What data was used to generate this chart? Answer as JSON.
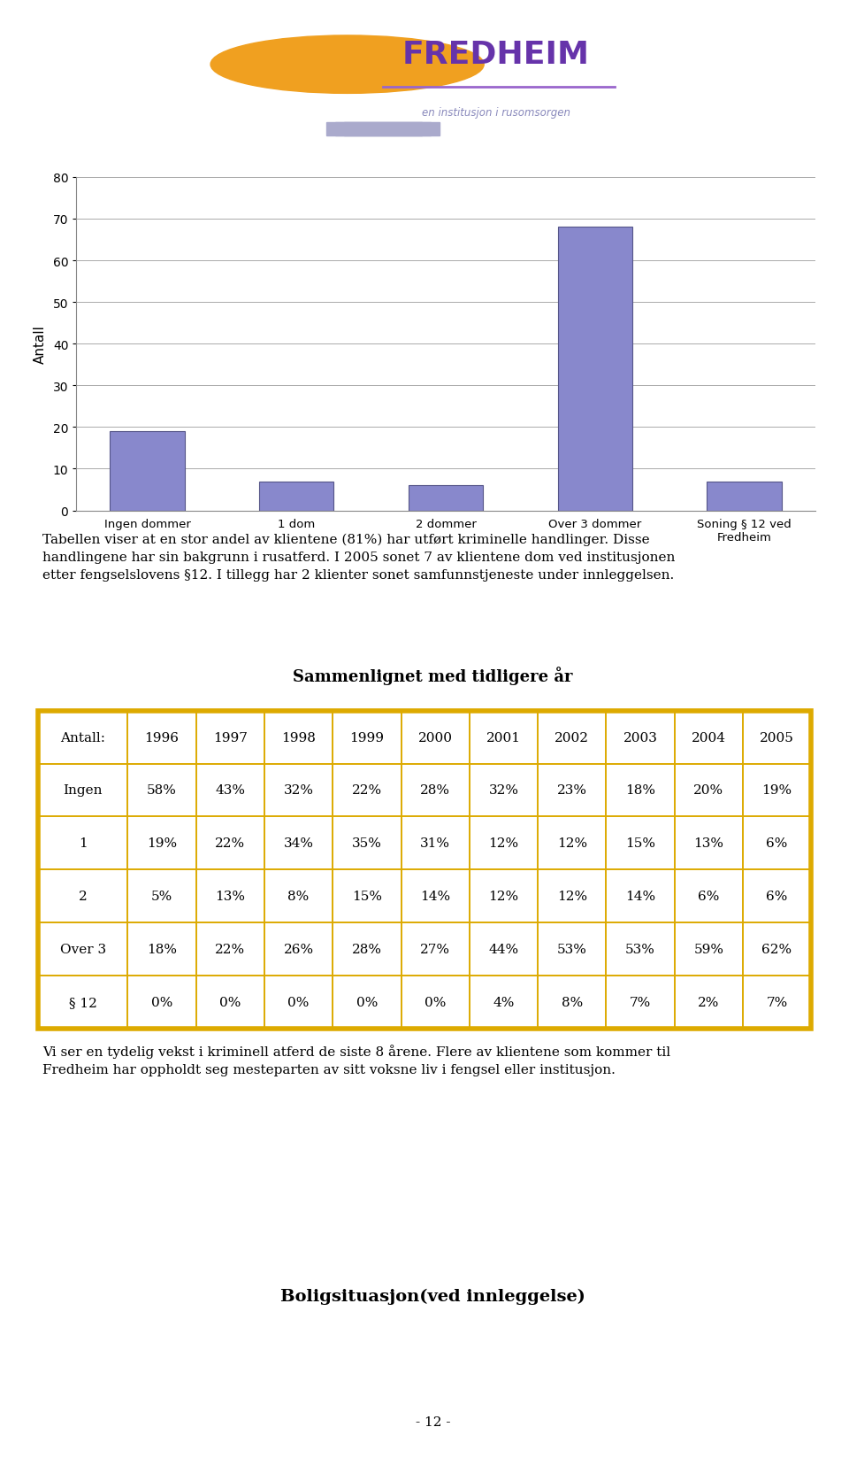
{
  "bar_categories": [
    "Ingen dommer",
    "1 dom",
    "2 dommer",
    "Over 3 dommer",
    "Soning § 12 ved\nFredheim"
  ],
  "bar_values": [
    19,
    7,
    6,
    68,
    7
  ],
  "bar_color": "#8888cc",
  "bar_edge_color": "#555588",
  "ylabel": "Antall",
  "ylim": [
    0,
    80
  ],
  "yticks": [
    0,
    10,
    20,
    30,
    40,
    50,
    60,
    70,
    80
  ],
  "grid_color": "#aaaaaa",
  "background_color": "#ffffff",
  "chart_bg_color": "#ffffff",
  "text_paragraph1_lines": [
    "Tabellen viser at en stor andel av klientene (81%) har utført kriminelle handlinger. Disse",
    "handlingene har sin bakgrunn i rusatferd. I 2005 sonet 7 av klientene dom ved institusjonen",
    "etter fengselslovens §12. I tillegg har 2 klienter sonet samfunnstjeneste under innleggelsen."
  ],
  "table_title": "Sammenlignet med tidligere år",
  "table_headers": [
    "Antall:",
    "1996",
    "1997",
    "1998",
    "1999",
    "2000",
    "2001",
    "2002",
    "2003",
    "2004",
    "2005"
  ],
  "table_rows": [
    [
      "Ingen",
      "58%",
      "43%",
      "32%",
      "22%",
      "28%",
      "32%",
      "23%",
      "18%",
      "20%",
      "19%"
    ],
    [
      "1",
      "19%",
      "22%",
      "34%",
      "35%",
      "31%",
      "12%",
      "12%",
      "15%",
      "13%",
      "6%"
    ],
    [
      "2",
      "5%",
      "13%",
      "8%",
      "15%",
      "14%",
      "12%",
      "12%",
      "14%",
      "6%",
      "6%"
    ],
    [
      "Over 3",
      "18%",
      "22%",
      "26%",
      "28%",
      "27%",
      "44%",
      "53%",
      "53%",
      "59%",
      "62%"
    ],
    [
      "§ 12",
      "0%",
      "0%",
      "0%",
      "0%",
      "0%",
      "4%",
      "8%",
      "7%",
      "2%",
      "7%"
    ]
  ],
  "table_border_color": "#ddaa00",
  "table_text_color": "#000000",
  "text_paragraph2_lines": [
    "Vi ser en tydelig vekst i kriminell atferd de siste 8 årene. Flere av klientene som kommer til",
    "Fredheim har oppholdt seg mesteparten av sitt voksne liv i fengsel eller institusjon."
  ],
  "bottom_title": "Boligsituasjon(ved innleggelse)",
  "page_number": "- 12 -",
  "font_size_body": 11,
  "font_size_table": 11,
  "font_size_table_title": 13,
  "logo_text": "FREDHEIM",
  "logo_subtitle": "en institusjon i rusomsorgen",
  "logo_color": "#6633aa",
  "logo_subtitle_color": "#8888bb",
  "logo_circle_color": "#f0a020",
  "logo_steps_color": "#aaaacc"
}
